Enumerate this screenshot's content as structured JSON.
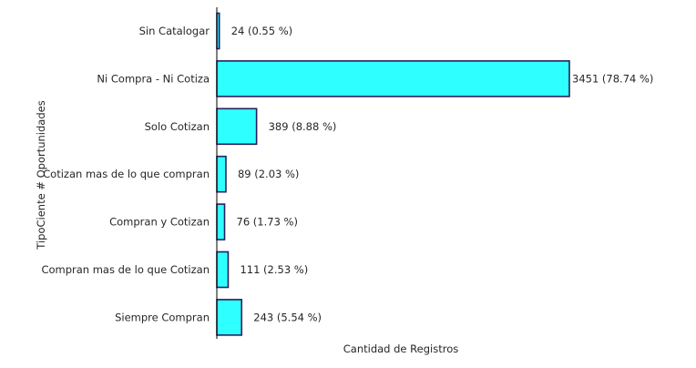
{
  "chart_data": {
    "type": "bar",
    "orientation": "horizontal",
    "categories": [
      "Sin Catalogar",
      "Ni Compra - Ni Cotiza",
      "Solo Cotizan",
      "Cotizan mas de lo que compran",
      "Compran y Cotizan",
      "Compran mas de lo que Cotizan",
      "Siempre Compran"
    ],
    "values": [
      24,
      3451,
      389,
      89,
      76,
      111,
      243
    ],
    "data_labels": [
      "24 (0.55 %)",
      "3451 (78.74 %)",
      "389 (8.88 %)",
      "89 (2.03 %)",
      "76 (1.73 %)",
      "111 (2.53 %)",
      "243 (5.54 %)"
    ],
    "xlabel": "Cantidad de Registros",
    "ylabel": "TipoCiente # Oportunidades",
    "xlim": [
      0,
      3451
    ],
    "grid": false,
    "legend": "none",
    "colors": {
      "bar_fill": "#2effff",
      "bar_edge": "#2a1f5c"
    }
  }
}
